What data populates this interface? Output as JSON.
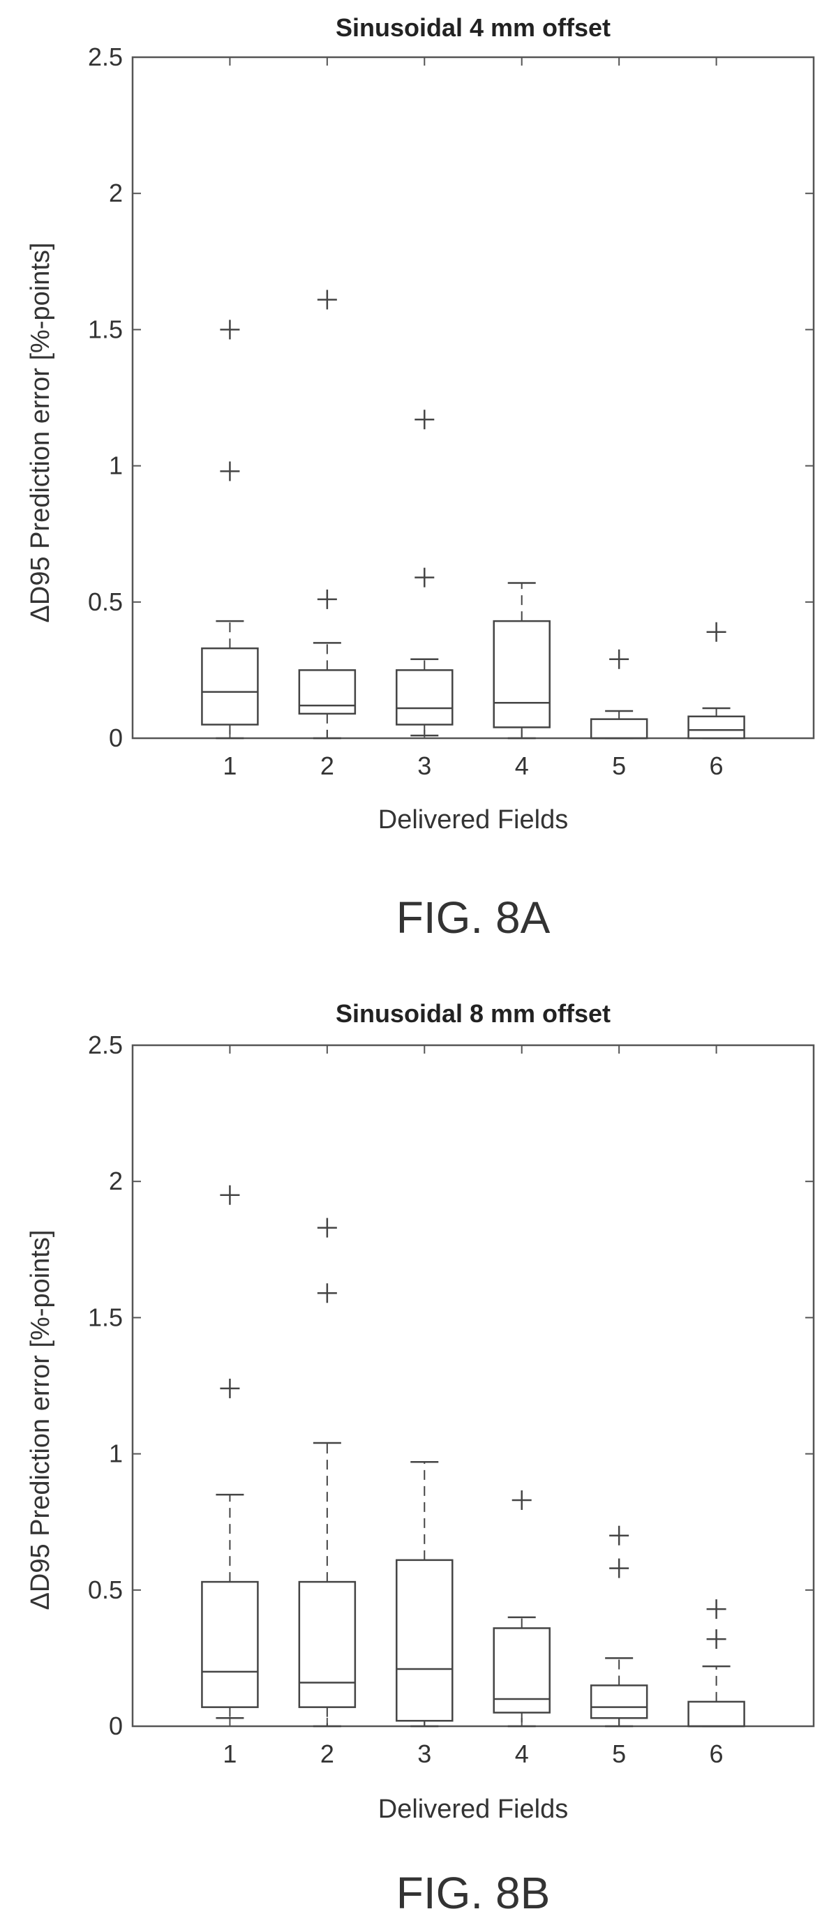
{
  "chart_data": [
    {
      "type": "box",
      "title": "Sinusoidal 4 mm offset",
      "xlabel": "Delivered Fields",
      "ylabel": "ΔD95 Prediction error [%-points]",
      "ylim": [
        0,
        2.5
      ],
      "yticks": [
        "0",
        "0.5",
        "1",
        "1.5",
        "2",
        "2.5"
      ],
      "categories": [
        "1",
        "2",
        "3",
        "4",
        "5",
        "6"
      ],
      "grid": false,
      "boxes": [
        {
          "category": "1",
          "lower_whisker": 0.0,
          "q1": 0.05,
          "median": 0.17,
          "q3": 0.33,
          "upper_whisker": 0.43,
          "outliers": [
            0.98,
            1.5
          ]
        },
        {
          "category": "2",
          "lower_whisker": 0.0,
          "q1": 0.09,
          "median": 0.12,
          "q3": 0.25,
          "upper_whisker": 0.35,
          "outliers": [
            0.51,
            1.61
          ]
        },
        {
          "category": "3",
          "lower_whisker": 0.01,
          "q1": 0.05,
          "median": 0.11,
          "q3": 0.25,
          "upper_whisker": 0.29,
          "outliers": [
            0.59,
            1.17
          ]
        },
        {
          "category": "4",
          "lower_whisker": 0.0,
          "q1": 0.04,
          "median": 0.13,
          "q3": 0.43,
          "upper_whisker": 0.57,
          "outliers": []
        },
        {
          "category": "5",
          "lower_whisker": 0.0,
          "q1": 0.0,
          "median": 0.0,
          "q3": 0.07,
          "upper_whisker": 0.1,
          "outliers": [
            0.29
          ]
        },
        {
          "category": "6",
          "lower_whisker": 0.0,
          "q1": 0.0,
          "median": 0.03,
          "q3": 0.08,
          "upper_whisker": 0.11,
          "outliers": [
            0.39
          ]
        }
      ]
    },
    {
      "type": "box",
      "title": "Sinusoidal 8 mm offset",
      "xlabel": "Delivered Fields",
      "ylabel": "ΔD95 Prediction error [%-points]",
      "ylim": [
        0,
        2.5
      ],
      "yticks": [
        "0",
        "0.5",
        "1",
        "1.5",
        "2",
        "2.5"
      ],
      "categories": [
        "1",
        "2",
        "3",
        "4",
        "5",
        "6"
      ],
      "grid": false,
      "boxes": [
        {
          "category": "1",
          "lower_whisker": 0.03,
          "q1": 0.07,
          "median": 0.2,
          "q3": 0.53,
          "upper_whisker": 0.85,
          "outliers": [
            1.24,
            1.95
          ]
        },
        {
          "category": "2",
          "lower_whisker": 0.0,
          "q1": 0.07,
          "median": 0.16,
          "q3": 0.53,
          "upper_whisker": 1.04,
          "outliers": [
            1.59,
            1.83
          ]
        },
        {
          "category": "3",
          "lower_whisker": 0.0,
          "q1": 0.02,
          "median": 0.21,
          "q3": 0.61,
          "upper_whisker": 0.97,
          "outliers": []
        },
        {
          "category": "4",
          "lower_whisker": 0.0,
          "q1": 0.05,
          "median": 0.1,
          "q3": 0.36,
          "upper_whisker": 0.4,
          "outliers": [
            0.83
          ]
        },
        {
          "category": "5",
          "lower_whisker": 0.0,
          "q1": 0.03,
          "median": 0.07,
          "q3": 0.15,
          "upper_whisker": 0.25,
          "outliers": [
            0.58,
            0.7
          ]
        },
        {
          "category": "6",
          "lower_whisker": 0.0,
          "q1": 0.0,
          "median": 0.0,
          "q3": 0.09,
          "upper_whisker": 0.22,
          "outliers": [
            0.32,
            0.43
          ]
        }
      ]
    }
  ],
  "captions": [
    "FIG. 8A",
    "FIG. 8B"
  ]
}
